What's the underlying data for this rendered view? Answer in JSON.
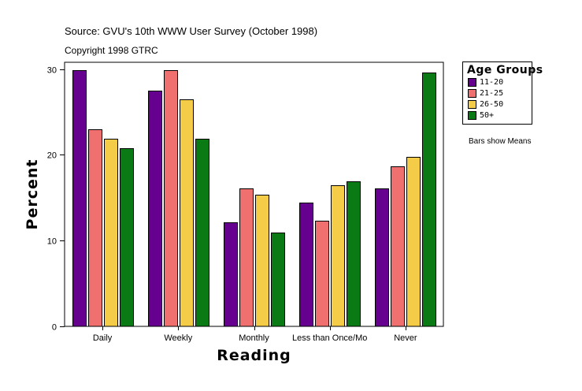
{
  "header": {
    "source": "Source: GVU's 10th WWW User Survey (October 1998)",
    "copyright": "Copyright 1998 GTRC"
  },
  "note": "Bars show Means",
  "chart_data": {
    "type": "bar",
    "title": "",
    "xlabel": "Reading",
    "ylabel": "Percent",
    "ylim": [
      0,
      30.8
    ],
    "yticks": [
      0,
      10,
      20,
      30
    ],
    "categories": [
      "Daily",
      "Weekly",
      "Monthly",
      "Less than Once/Mo",
      "Never"
    ],
    "legend_title": "Age Groups",
    "legend_position": "top-right outside",
    "series": [
      {
        "name": "11-20",
        "color": "#66008f",
        "values": [
          29.9,
          27.5,
          12.1,
          14.4,
          16.1
        ]
      },
      {
        "name": "21-25",
        "color": "#f07070",
        "values": [
          23.0,
          29.9,
          16.1,
          12.3,
          18.7
        ]
      },
      {
        "name": "26-50",
        "color": "#f5cc48",
        "values": [
          21.9,
          26.5,
          15.4,
          16.5,
          19.8
        ]
      },
      {
        "name": "50+",
        "color": "#0a7a14",
        "values": [
          20.8,
          21.9,
          10.9,
          16.9,
          29.6
        ]
      }
    ]
  }
}
